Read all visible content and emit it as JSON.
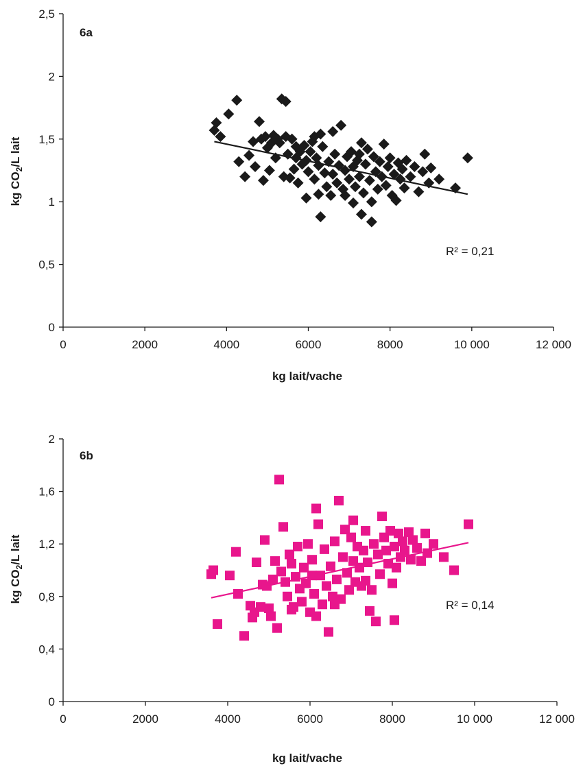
{
  "chart_data": [
    {
      "type": "scatter",
      "panel_label": "6a",
      "xlabel": "kg lait/vache",
      "ylabel_main": "kg CO",
      "ylabel_sub": "2",
      "ylabel_end": "/L lait",
      "xlim": [
        0,
        12000
      ],
      "ylim": [
        0,
        2.5
      ],
      "xticks": [
        0,
        2000,
        4000,
        6000,
        8000,
        10000,
        12000
      ],
      "xtick_labels": [
        "0",
        "2000",
        "4000",
        "6000",
        "8000",
        "10 000",
        "12 000"
      ],
      "yticks": [
        0,
        0.5,
        1,
        1.5,
        2,
        2.5
      ],
      "ytick_labels": [
        "0",
        "0,5",
        "1",
        "1,5",
        "2",
        "2,5"
      ],
      "marker": "diamond",
      "color": "#1a1a1a",
      "annotation": "R² = 0,21",
      "trendline": [
        [
          3700,
          1.48
        ],
        [
          9900,
          1.06
        ]
      ],
      "points": [
        [
          3700,
          1.57
        ],
        [
          3750,
          1.63
        ],
        [
          3850,
          1.52
        ],
        [
          4050,
          1.7
        ],
        [
          4250,
          1.81
        ],
        [
          4300,
          1.32
        ],
        [
          4450,
          1.2
        ],
        [
          4550,
          1.37
        ],
        [
          4650,
          1.48
        ],
        [
          4700,
          1.28
        ],
        [
          4800,
          1.64
        ],
        [
          4850,
          1.5
        ],
        [
          4900,
          1.17
        ],
        [
          4950,
          1.52
        ],
        [
          5000,
          1.43
        ],
        [
          5050,
          1.25
        ],
        [
          5100,
          1.47
        ],
        [
          5150,
          1.53
        ],
        [
          5200,
          1.35
        ],
        [
          5250,
          1.5
        ],
        [
          5300,
          1.47
        ],
        [
          5350,
          1.82
        ],
        [
          5400,
          1.2
        ],
        [
          5450,
          1.8
        ],
        [
          5450,
          1.52
        ],
        [
          5500,
          1.38
        ],
        [
          5550,
          1.19
        ],
        [
          5600,
          1.5
        ],
        [
          5650,
          1.26
        ],
        [
          5700,
          1.44
        ],
        [
          5700,
          1.35
        ],
        [
          5750,
          1.15
        ],
        [
          5800,
          1.4
        ],
        [
          5850,
          1.3
        ],
        [
          5900,
          1.45
        ],
        [
          5950,
          1.03
        ],
        [
          5950,
          1.33
        ],
        [
          6000,
          1.24
        ],
        [
          6050,
          1.4
        ],
        [
          6100,
          1.48
        ],
        [
          6150,
          1.18
        ],
        [
          6200,
          1.35
        ],
        [
          6250,
          1.06
        ],
        [
          6250,
          1.29
        ],
        [
          6300,
          1.54
        ],
        [
          6300,
          0.88
        ],
        [
          6350,
          1.44
        ],
        [
          6400,
          1.23
        ],
        [
          6450,
          1.12
        ],
        [
          6500,
          1.32
        ],
        [
          6550,
          1.05
        ],
        [
          6600,
          1.56
        ],
        [
          6600,
          1.22
        ],
        [
          6650,
          1.38
        ],
        [
          6700,
          1.15
        ],
        [
          6750,
          1.29
        ],
        [
          6800,
          1.61
        ],
        [
          6850,
          1.1
        ],
        [
          6900,
          1.25
        ],
        [
          6950,
          1.36
        ],
        [
          7000,
          1.18
        ],
        [
          7050,
          1.4
        ],
        [
          7100,
          0.99
        ],
        [
          7100,
          1.28
        ],
        [
          7150,
          1.12
        ],
        [
          7200,
          1.33
        ],
        [
          7250,
          1.2
        ],
        [
          7300,
          1.47
        ],
        [
          7300,
          0.9
        ],
        [
          7350,
          1.07
        ],
        [
          7400,
          1.3
        ],
        [
          7450,
          1.42
        ],
        [
          7500,
          1.17
        ],
        [
          7550,
          1.0
        ],
        [
          7550,
          0.84
        ],
        [
          7600,
          1.36
        ],
        [
          7650,
          1.24
        ],
        [
          7700,
          1.1
        ],
        [
          7750,
          1.32
        ],
        [
          7800,
          1.2
        ],
        [
          7850,
          1.46
        ],
        [
          7900,
          1.13
        ],
        [
          7950,
          1.28
        ],
        [
          8000,
          1.35
        ],
        [
          8050,
          1.05
        ],
        [
          8100,
          1.22
        ],
        [
          8150,
          1.01
        ],
        [
          8200,
          1.31
        ],
        [
          8250,
          1.18
        ],
        [
          8300,
          1.26
        ],
        [
          8350,
          1.11
        ],
        [
          8400,
          1.33
        ],
        [
          8500,
          1.2
        ],
        [
          8600,
          1.28
        ],
        [
          8700,
          1.08
        ],
        [
          8800,
          1.24
        ],
        [
          8850,
          1.38
        ],
        [
          8950,
          1.15
        ],
        [
          9000,
          1.27
        ],
        [
          9200,
          1.18
        ],
        [
          9600,
          1.11
        ],
        [
          9900,
          1.35
        ],
        [
          6150,
          1.52
        ],
        [
          6900,
          1.05
        ],
        [
          7250,
          1.38
        ]
      ]
    },
    {
      "type": "scatter",
      "panel_label": "6b",
      "xlabel": "kg lait/vache",
      "ylabel_main": "kg CO",
      "ylabel_sub": "2",
      "ylabel_end": "/L lait",
      "xlim": [
        0,
        12000
      ],
      "ylim": [
        0,
        2
      ],
      "xticks": [
        0,
        2000,
        4000,
        6000,
        8000,
        10000,
        12000
      ],
      "xtick_labels": [
        "0",
        "2000",
        "4000",
        "6000",
        "8000",
        "10 000",
        "12 000"
      ],
      "yticks": [
        0,
        0.4,
        0.8,
        1.2,
        1.6,
        2
      ],
      "ytick_labels": [
        "0",
        "0,4",
        "0,8",
        "1,2",
        "1,6",
        "2"
      ],
      "marker": "square",
      "color": "#e8168c",
      "annotation": "R² = 0,14",
      "trendline": [
        [
          3600,
          0.79
        ],
        [
          9850,
          1.21
        ]
      ],
      "points": [
        [
          3600,
          0.97
        ],
        [
          3650,
          1.0
        ],
        [
          3750,
          0.59
        ],
        [
          4050,
          0.96
        ],
        [
          4200,
          1.14
        ],
        [
          4250,
          0.82
        ],
        [
          4400,
          0.5
        ],
        [
          4550,
          0.73
        ],
        [
          4600,
          0.64
        ],
        [
          4650,
          0.68
        ],
        [
          4700,
          1.06
        ],
        [
          4800,
          0.72
        ],
        [
          4850,
          0.89
        ],
        [
          4900,
          1.23
        ],
        [
          4950,
          0.88
        ],
        [
          5000,
          0.71
        ],
        [
          5050,
          0.65
        ],
        [
          5100,
          0.93
        ],
        [
          5150,
          1.07
        ],
        [
          5200,
          0.56
        ],
        [
          5250,
          1.69
        ],
        [
          5300,
          0.99
        ],
        [
          5350,
          1.33
        ],
        [
          5400,
          0.91
        ],
        [
          5450,
          0.8
        ],
        [
          5500,
          1.12
        ],
        [
          5550,
          1.05
        ],
        [
          5600,
          0.72
        ],
        [
          5650,
          0.95
        ],
        [
          5700,
          1.18
        ],
        [
          5750,
          0.86
        ],
        [
          5800,
          0.76
        ],
        [
          5850,
          1.02
        ],
        [
          5900,
          0.9
        ],
        [
          5950,
          1.2
        ],
        [
          6000,
          0.68
        ],
        [
          6050,
          1.08
        ],
        [
          6100,
          0.82
        ],
        [
          6150,
          0.65
        ],
        [
          6150,
          1.47
        ],
        [
          6200,
          1.35
        ],
        [
          6250,
          0.96
        ],
        [
          6300,
          0.74
        ],
        [
          6350,
          1.16
        ],
        [
          6400,
          0.88
        ],
        [
          6450,
          0.53
        ],
        [
          6500,
          1.03
        ],
        [
          6550,
          0.8
        ],
        [
          6600,
          1.22
        ],
        [
          6650,
          0.93
        ],
        [
          6700,
          1.53
        ],
        [
          6750,
          0.78
        ],
        [
          6800,
          1.1
        ],
        [
          6850,
          1.31
        ],
        [
          6900,
          0.98
        ],
        [
          6950,
          0.85
        ],
        [
          7000,
          1.25
        ],
        [
          7050,
          1.07
        ],
        [
          7100,
          0.91
        ],
        [
          7150,
          1.18
        ],
        [
          7200,
          1.02
        ],
        [
          7250,
          0.88
        ],
        [
          7300,
          1.15
        ],
        [
          7350,
          1.3
        ],
        [
          7400,
          1.06
        ],
        [
          7450,
          0.69
        ],
        [
          7500,
          0.85
        ],
        [
          7550,
          1.2
        ],
        [
          7600,
          0.61
        ],
        [
          7650,
          1.12
        ],
        [
          7700,
          0.97
        ],
        [
          7750,
          1.41
        ],
        [
          7800,
          1.25
        ],
        [
          7850,
          1.15
        ],
        [
          7900,
          1.05
        ],
        [
          7950,
          1.3
        ],
        [
          8000,
          0.9
        ],
        [
          8050,
          1.18
        ],
        [
          8050,
          0.62
        ],
        [
          8100,
          1.02
        ],
        [
          8150,
          1.28
        ],
        [
          8200,
          1.1
        ],
        [
          8250,
          1.22
        ],
        [
          8300,
          1.15
        ],
        [
          8400,
          1.29
        ],
        [
          8450,
          1.08
        ],
        [
          8500,
          1.23
        ],
        [
          8600,
          1.17
        ],
        [
          8700,
          1.07
        ],
        [
          8800,
          1.28
        ],
        [
          8850,
          1.13
        ],
        [
          9000,
          1.2
        ],
        [
          9250,
          1.1
        ],
        [
          9500,
          1.0
        ],
        [
          9850,
          1.35
        ],
        [
          5550,
          0.7
        ],
        [
          6050,
          0.96
        ],
        [
          7050,
          1.38
        ],
        [
          6600,
          0.74
        ],
        [
          7350,
          0.92
        ]
      ]
    }
  ]
}
